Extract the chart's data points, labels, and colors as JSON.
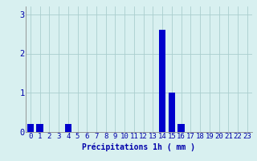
{
  "hours": [
    0,
    1,
    2,
    3,
    4,
    5,
    6,
    7,
    8,
    9,
    10,
    11,
    12,
    13,
    14,
    15,
    16,
    17,
    18,
    19,
    20,
    21,
    22,
    23
  ],
  "values": [
    0.2,
    0.2,
    0.0,
    0.0,
    0.2,
    0.0,
    0.0,
    0.0,
    0.0,
    0.0,
    0.0,
    0.0,
    0.0,
    0.0,
    2.6,
    1.0,
    0.2,
    0.0,
    0.0,
    0.0,
    0.0,
    0.0,
    0.0,
    0.0
  ],
  "bar_color": "#0000cc",
  "bg_color": "#d8f0f0",
  "grid_color": "#aacece",
  "text_color": "#0000aa",
  "xlabel": "Précipitations 1h ( mm )",
  "ylim": [
    0,
    3.2
  ],
  "yticks": [
    0,
    1,
    2,
    3
  ],
  "xlabel_fontsize": 7.0,
  "tick_fontsize": 6.5,
  "bar_width": 0.7
}
